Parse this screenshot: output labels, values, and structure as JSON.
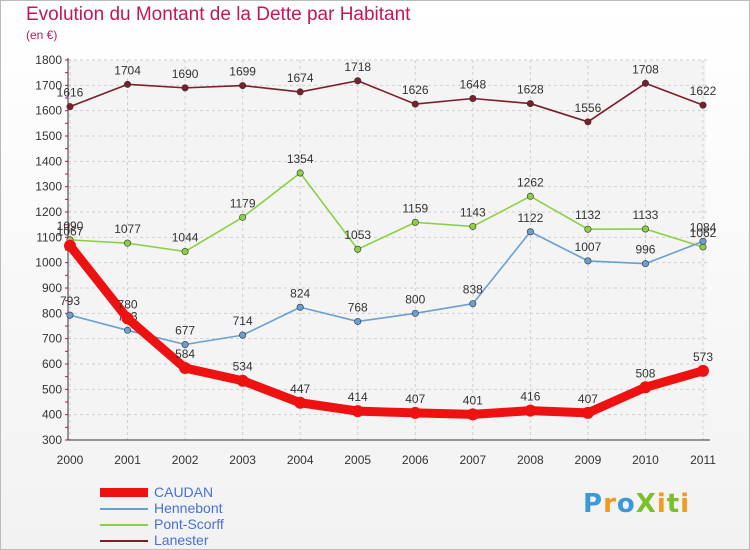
{
  "title": "Evolution du Montant de la Dette par Habitant",
  "unit_label": "(en €)",
  "brand": "ProXiti",
  "chart_data": {
    "type": "line",
    "title": "Evolution du Montant de la Dette par Habitant",
    "subtitle": "(en €)",
    "xlabel": "",
    "ylabel": "",
    "categories": [
      "2000",
      "2001",
      "2002",
      "2003",
      "2004",
      "2005",
      "2006",
      "2007",
      "2008",
      "2009",
      "2010",
      "2011"
    ],
    "ylim": [
      300,
      1800
    ],
    "yticks": [
      300,
      400,
      500,
      600,
      700,
      800,
      900,
      1000,
      1100,
      1200,
      1300,
      1400,
      1500,
      1600,
      1700,
      1800
    ],
    "grid": true,
    "legend_position": "bottom-left",
    "series": [
      {
        "name": "Lanester",
        "color": "#7a1f2b",
        "values": [
          1616,
          1704,
          1690,
          1699,
          1674,
          1718,
          1626,
          1648,
          1628,
          1556,
          1708,
          1622
        ]
      },
      {
        "name": "Pont-Scorff",
        "color": "#8ccf45",
        "values": [
          1090,
          1077,
          1044,
          1179,
          1354,
          1053,
          1159,
          1143,
          1262,
          1132,
          1133,
          1062
        ]
      },
      {
        "name": "Hennebont",
        "color": "#6a9fd0",
        "values": [
          793,
          733,
          677,
          714,
          824,
          768,
          800,
          838,
          1122,
          1007,
          996,
          1084
        ]
      },
      {
        "name": "CAUDAN",
        "color": "#ee1111",
        "values": [
          1067,
          780,
          584,
          534,
          447,
          414,
          407,
          401,
          416,
          407,
          508,
          573
        ]
      }
    ],
    "data_labels": {
      "Lanester": [
        "1616",
        "1704",
        "1690",
        "1699",
        "1674",
        "1718",
        "1626",
        "1648",
        "1628",
        "1556",
        "1708",
        "1622"
      ],
      "Pont-Scorff": [
        "1090",
        "1077",
        "1044",
        "1179",
        "1354",
        "1053",
        "1159",
        "1143",
        "1262",
        "1132",
        "1133",
        "1062"
      ],
      "Hennebont": [
        "793",
        "733",
        "677",
        "714",
        "824",
        "768",
        "800",
        "838",
        "1122",
        "1007",
        "996",
        "1084"
      ],
      "CAUDAN": [
        "1067",
        "780",
        "584",
        "534",
        "447",
        "414",
        "407",
        "401",
        "416",
        "407",
        "508",
        "573"
      ]
    }
  },
  "legend": [
    {
      "name": "CAUDAN",
      "color": "#ee1111",
      "thick": true
    },
    {
      "name": "Hennebont",
      "color": "#6a9fd0",
      "thick": false
    },
    {
      "name": "Pont-Scorff",
      "color": "#8ccf45",
      "thick": false
    },
    {
      "name": "Lanester",
      "color": "#7a1f2b",
      "thick": false
    }
  ]
}
